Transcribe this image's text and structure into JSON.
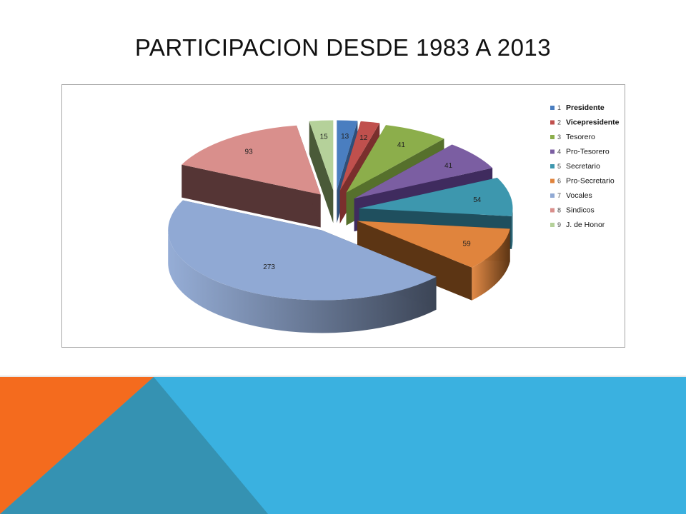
{
  "slide": {
    "title": "PARTICIPACION  DESDE 1983 A 2013"
  },
  "colors": {
    "background": "#ffffff",
    "band_blue": "#3ab1e0",
    "band_orange": "#f46b1e",
    "band_teal": "#3592b2"
  },
  "chart_data": {
    "type": "pie",
    "style": "3d-exploded",
    "title": "",
    "legend_position": "right",
    "slices": [
      {
        "num": "1",
        "label": "Presidente",
        "value": 13,
        "color": "#4a7ec0",
        "dark": "#2e4f7a"
      },
      {
        "num": "2",
        "label": "Vicepresidente",
        "value": 12,
        "color": "#c0504d",
        "dark": "#7a2f2d"
      },
      {
        "num": "3",
        "label": "Tesorero",
        "value": 41,
        "color": "#8cae4b",
        "dark": "#56702c"
      },
      {
        "num": "4",
        "label": "Pro-Tesorero",
        "value": 41,
        "color": "#7b5ea2",
        "dark": "#3f2b5e"
      },
      {
        "num": "5",
        "label": "Secretario",
        "value": 54,
        "color": "#3d97ae",
        "dark": "#1f4f5e"
      },
      {
        "num": "6",
        "label": "Pro-Secretario",
        "value": 59,
        "color": "#e0843d",
        "dark": "#5c3514"
      },
      {
        "num": "7",
        "label": "Vocales",
        "value": 273,
        "color": "#90a9d4",
        "dark": "#3c4556"
      },
      {
        "num": "8",
        "label": "Sindicos",
        "value": 93,
        "color": "#d98f8c",
        "dark": "#553535"
      },
      {
        "num": "9",
        "label": "J. de Honor",
        "value": 15,
        "color": "#b5d19a",
        "dark": "#4a5a38"
      }
    ]
  }
}
